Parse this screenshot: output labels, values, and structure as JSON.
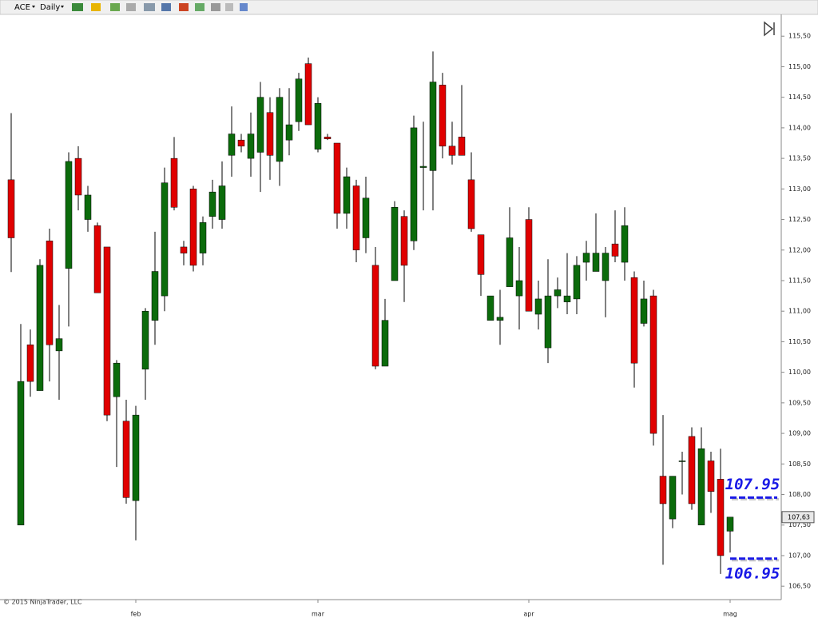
{
  "toolbar": {
    "instrument": "ACE",
    "interval": "Daily"
  },
  "chart_data": {
    "type": "candlestick",
    "copyright": "© 2015 NinjaTrader, LLC",
    "categories": [
      null,
      null,
      null,
      null,
      null,
      null,
      null,
      null,
      null,
      null,
      null,
      null,
      null,
      "feb",
      null,
      null,
      null,
      null,
      null,
      null,
      null,
      null,
      null,
      null,
      null,
      null,
      null,
      null,
      null,
      null,
      null,
      null,
      "mar",
      null,
      null,
      null,
      null,
      null,
      null,
      null,
      null,
      null,
      null,
      null,
      null,
      null,
      null,
      null,
      null,
      null,
      null,
      null,
      null,
      null,
      "apr",
      null,
      null,
      null,
      null,
      null,
      null,
      null,
      null,
      null,
      null,
      null,
      null,
      null,
      null,
      null,
      null,
      null,
      null,
      null,
      null,
      "mag"
    ],
    "open": [
      113.15,
      107.5,
      110.45,
      109.7,
      112.15,
      110.35,
      111.7,
      113.5,
      112.5,
      112.4,
      112.05,
      109.6,
      109.2,
      107.9,
      110.05,
      110.85,
      111.25,
      113.5,
      112.05,
      113.0,
      111.95,
      112.55,
      112.5,
      113.55,
      113.8,
      113.5,
      113.6,
      114.25,
      113.45,
      113.8,
      114.1,
      115.05,
      113.65,
      113.85,
      113.75,
      112.6,
      113.05,
      112.2,
      111.75,
      110.1,
      111.5,
      112.55,
      112.15,
      113.35,
      113.3,
      114.7,
      113.7,
      113.85,
      113.15,
      112.25,
      110.85,
      110.85,
      111.4,
      111.25,
      112.5,
      110.95,
      110.4,
      111.25,
      111.15,
      111.2,
      111.8,
      111.65,
      111.5,
      112.1,
      111.8,
      111.55,
      110.8,
      111.25,
      108.3,
      107.6,
      108.55,
      108.95,
      107.5,
      108.55,
      108.25,
      107.4
    ],
    "high": [
      114.24,
      110.79,
      110.7,
      111.85,
      112.35,
      111.1,
      113.6,
      113.7,
      113.05,
      112.45,
      112.05,
      110.2,
      109.55,
      109.45,
      111.05,
      112.3,
      113.35,
      113.85,
      112.15,
      113.05,
      112.55,
      113.15,
      113.45,
      114.35,
      113.9,
      114.25,
      114.75,
      114.5,
      114.65,
      114.65,
      114.9,
      115.15,
      114.5,
      113.9,
      113.75,
      113.35,
      113.15,
      113.2,
      112.05,
      111.2,
      112.8,
      112.65,
      114.2,
      114.1,
      115.25,
      114.9,
      114.1,
      114.7,
      113.6,
      112.25,
      111.25,
      111.35,
      112.7,
      112.05,
      112.7,
      111.5,
      111.85,
      111.55,
      111.95,
      111.9,
      112.15,
      112.6,
      112.05,
      112.65,
      112.7,
      111.65,
      111.5,
      111.35,
      109.3,
      108.3,
      108.7,
      109.1,
      109.1,
      108.7,
      108.75,
      107.63
    ],
    "low": [
      111.64,
      107.5,
      109.6,
      109.7,
      109.85,
      109.55,
      110.75,
      112.65,
      112.3,
      111.3,
      109.2,
      108.45,
      107.85,
      107.25,
      109.55,
      110.45,
      111.0,
      112.65,
      111.75,
      111.65,
      111.75,
      112.35,
      112.35,
      113.2,
      113.6,
      113.2,
      112.95,
      113.15,
      113.05,
      113.55,
      113.95,
      114.05,
      113.6,
      113.8,
      112.35,
      112.35,
      111.8,
      111.95,
      110.05,
      110.1,
      111.5,
      111.15,
      112.0,
      112.65,
      112.65,
      113.5,
      113.4,
      113.55,
      112.3,
      111.25,
      110.85,
      110.45,
      111.4,
      110.7,
      111.0,
      110.7,
      110.15,
      111.05,
      110.95,
      110.95,
      111.5,
      111.65,
      110.9,
      111.8,
      111.5,
      109.75,
      110.75,
      108.8,
      106.85,
      107.45,
      108.0,
      107.75,
      107.5,
      107.7,
      106.7,
      107.05
    ],
    "close": [
      112.2,
      109.85,
      109.85,
      111.75,
      110.45,
      110.55,
      113.45,
      112.9,
      112.9,
      111.3,
      109.3,
      110.15,
      107.95,
      109.3,
      111.0,
      111.65,
      113.1,
      112.7,
      111.95,
      111.75,
      112.45,
      112.95,
      113.05,
      113.9,
      113.7,
      113.9,
      114.5,
      113.55,
      114.5,
      114.05,
      114.8,
      114.05,
      114.4,
      113.82,
      112.6,
      113.2,
      112.0,
      112.85,
      110.1,
      110.85,
      112.7,
      111.75,
      114.0,
      113.37,
      114.75,
      113.7,
      113.55,
      113.55,
      112.35,
      111.6,
      111.25,
      110.9,
      112.2,
      111.5,
      111.0,
      111.2,
      111.25,
      111.35,
      111.25,
      111.75,
      111.95,
      111.95,
      111.95,
      111.9,
      112.4,
      110.15,
      111.2,
      109.0,
      107.85,
      108.3,
      108.55,
      107.85,
      108.75,
      108.05,
      107.0,
      107.63
    ],
    "up_color": "#0b6b0b",
    "down_color": "#e00000",
    "ylim": [
      106.28,
      115.83
    ],
    "yticks": [
      {
        "value": 106.5,
        "label": "106,50"
      },
      {
        "value": 107,
        "label": "107,00"
      },
      {
        "value": 107.5,
        "label": "107,50"
      },
      {
        "value": 108,
        "label": "108,00"
      },
      {
        "value": 108.5,
        "label": "108,50"
      },
      {
        "value": 109,
        "label": "109,00"
      },
      {
        "value": 109.5,
        "label": "109,50"
      },
      {
        "value": 110,
        "label": "110,00"
      },
      {
        "value": 110.5,
        "label": "110,50"
      },
      {
        "value": 111,
        "label": "111,00"
      },
      {
        "value": 111.5,
        "label": "111,50"
      },
      {
        "value": 112,
        "label": "112,00"
      },
      {
        "value": 112.5,
        "label": "112,50"
      },
      {
        "value": 113,
        "label": "113,00"
      },
      {
        "value": 113.5,
        "label": "113,50"
      },
      {
        "value": 114,
        "label": "114,00"
      },
      {
        "value": 114.5,
        "label": "114,50"
      },
      {
        "value": 115,
        "label": "115,00"
      },
      {
        "value": 115.5,
        "label": "115,50"
      }
    ],
    "last_price": {
      "value": 107.63,
      "label": "107,63"
    },
    "levels": [
      107.95,
      106.95
    ],
    "level_color": "#1a1ae6"
  }
}
